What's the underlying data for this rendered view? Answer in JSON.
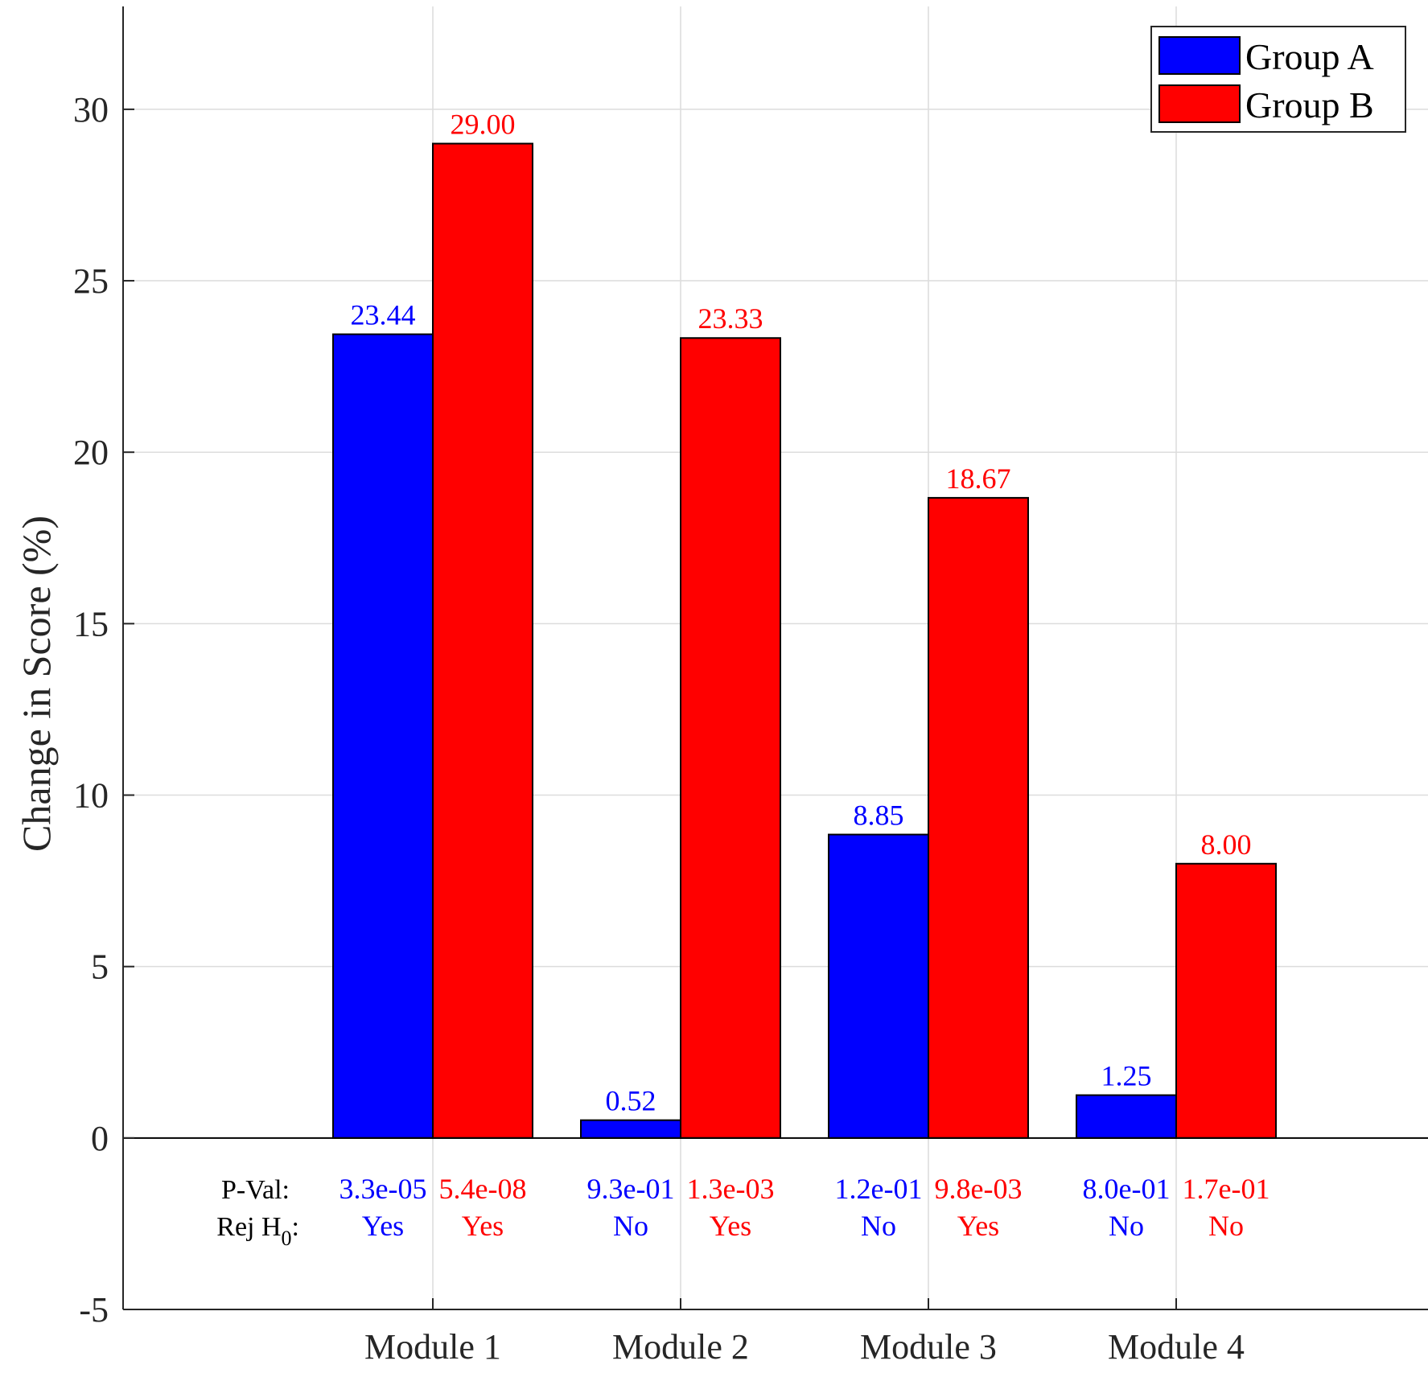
{
  "chart_data": {
    "type": "bar",
    "title": "",
    "ylabel": "Change in Score (%)",
    "xlabel": "",
    "ylim": [
      -5,
      33
    ],
    "yticks": [
      -5,
      0,
      5,
      10,
      15,
      20,
      25,
      30
    ],
    "ytick_labels": [
      "-5",
      "0",
      "5",
      "10",
      "15",
      "20",
      "25",
      "30"
    ],
    "grid": true,
    "legend_position": "top-right",
    "categories": [
      "Module 1",
      "Module 2",
      "Module 3",
      "Module 4"
    ],
    "series": [
      {
        "name": "Group A",
        "color": "#0000ff",
        "values": [
          23.44,
          0.52,
          8.85,
          1.25
        ],
        "value_labels": [
          "23.44",
          "0.52",
          "8.85",
          "1.25"
        ],
        "p_values": [
          "3.3e-05",
          "9.3e-01",
          "1.2e-01",
          "8.0e-01"
        ],
        "reject_h0": [
          "Yes",
          "No",
          "No",
          "No"
        ]
      },
      {
        "name": "Group B",
        "color": "#ff0000",
        "values": [
          29.0,
          23.33,
          18.67,
          8.0
        ],
        "value_labels": [
          "29.00",
          "23.33",
          "18.67",
          "8.00"
        ],
        "p_values": [
          "5.4e-08",
          "1.3e-03",
          "9.8e-03",
          "1.7e-01"
        ],
        "reject_h0": [
          "Yes",
          "Yes",
          "Yes",
          "No"
        ]
      }
    ],
    "stat_row_labels": {
      "p_value": "P-Val:",
      "reject_prefix": "Rej H",
      "reject_subscript": "0",
      "reject_suffix": ":"
    }
  }
}
